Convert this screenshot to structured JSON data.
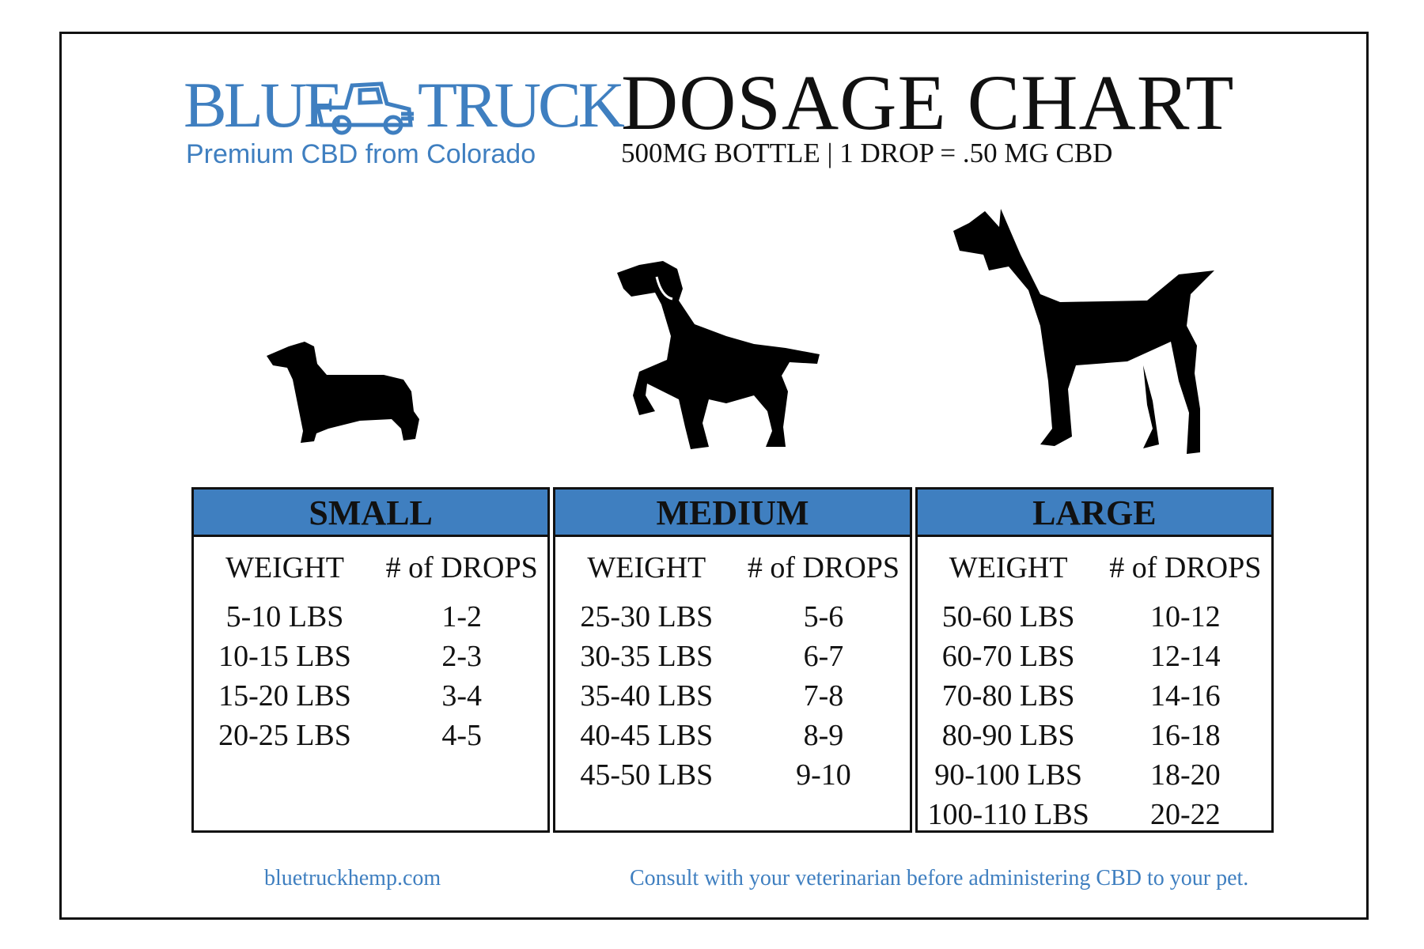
{
  "brand": {
    "name_left": "BLUE",
    "name_right": "TRUCK",
    "tagline": "Premium CBD from Colorado",
    "color": "#3f7fc0",
    "logo_icon": "pickup-truck-icon"
  },
  "title": "DOSAGE CHART",
  "subtitle": "500MG BOTTLE | 1 DROP = .50 MG CBD",
  "dogs": [
    "dachshund-silhouette",
    "pointer-silhouette",
    "great-dane-silhouette"
  ],
  "header_color": "#3f7fc0",
  "columns": [
    {
      "label": "SMALL",
      "weight_header": "WEIGHT",
      "drops_header": "# of DROPS",
      "rows": [
        {
          "weight": "5-10 LBS",
          "drops": "1-2"
        },
        {
          "weight": "10-15 LBS",
          "drops": "2-3"
        },
        {
          "weight": "15-20 LBS",
          "drops": "3-4"
        },
        {
          "weight": "20-25 LBS",
          "drops": "4-5"
        }
      ]
    },
    {
      "label": "MEDIUM",
      "weight_header": "WEIGHT",
      "drops_header": "# of DROPS",
      "rows": [
        {
          "weight": "25-30 LBS",
          "drops": "5-6"
        },
        {
          "weight": "30-35 LBS",
          "drops": "6-7"
        },
        {
          "weight": "35-40 LBS",
          "drops": "7-8"
        },
        {
          "weight": "40-45 LBS",
          "drops": "8-9"
        },
        {
          "weight": "45-50 LBS",
          "drops": "9-10"
        }
      ]
    },
    {
      "label": "LARGE",
      "weight_header": "WEIGHT",
      "drops_header": "# of DROPS",
      "rows": [
        {
          "weight": "50-60 LBS",
          "drops": "10-12"
        },
        {
          "weight": "60-70 LBS",
          "drops": "12-14"
        },
        {
          "weight": "70-80 LBS",
          "drops": "14-16"
        },
        {
          "weight": "80-90 LBS",
          "drops": "16-18"
        },
        {
          "weight": "90-100 LBS",
          "drops": "18-20"
        },
        {
          "weight": "100-110 LBS",
          "drops": "20-22"
        }
      ]
    }
  ],
  "footer": {
    "website": "bluetruckhemp.com",
    "disclaimer": "Consult with your veterinarian before administering CBD to your pet."
  }
}
